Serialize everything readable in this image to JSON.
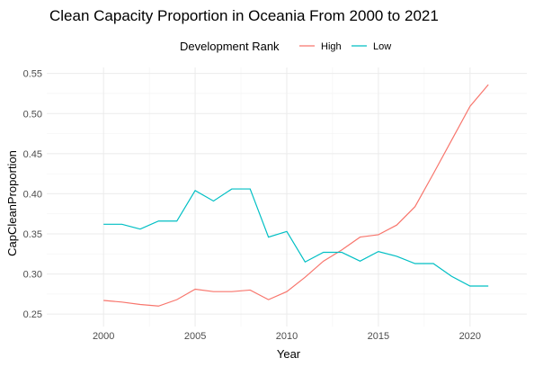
{
  "chart_data": {
    "type": "line",
    "title": "Clean Capacity Proportion in Oceania From 2000 to 2021",
    "xlabel": "Year",
    "ylabel": "CapCleanProportion",
    "legend_title": "Development Rank",
    "legend_position": "top",
    "grid": true,
    "xlim": [
      2000,
      2021
    ],
    "ylim": [
      0.25,
      0.55
    ],
    "x_ticks": [
      2000,
      2005,
      2010,
      2015,
      2020
    ],
    "y_ticks": [
      0.25,
      0.3,
      0.35,
      0.4,
      0.45,
      0.5,
      0.55
    ],
    "x_tick_labels": [
      "2000",
      "2005",
      "2010",
      "2015",
      "2020"
    ],
    "y_tick_labels": [
      "0.25",
      "0.30",
      "0.35",
      "0.40",
      "0.45",
      "0.50",
      "0.55"
    ],
    "x": [
      2000,
      2001,
      2002,
      2003,
      2004,
      2005,
      2006,
      2007,
      2008,
      2009,
      2010,
      2011,
      2012,
      2013,
      2014,
      2015,
      2016,
      2017,
      2018,
      2019,
      2020,
      2021
    ],
    "series": [
      {
        "name": "High",
        "color": "#F8766D",
        "values": [
          0.267,
          0.265,
          0.262,
          0.26,
          0.268,
          0.281,
          0.278,
          0.278,
          0.28,
          0.268,
          0.278,
          0.296,
          0.316,
          0.33,
          0.346,
          0.349,
          0.361,
          0.384,
          0.425,
          0.467,
          0.509,
          0.536
        ]
      },
      {
        "name": "Low",
        "color": "#00BFC4",
        "values": [
          0.362,
          0.362,
          0.356,
          0.366,
          0.366,
          0.404,
          0.391,
          0.406,
          0.406,
          0.346,
          0.353,
          0.315,
          0.327,
          0.327,
          0.316,
          0.328,
          0.322,
          0.313,
          0.313,
          0.297,
          0.285,
          0.285
        ]
      }
    ]
  }
}
